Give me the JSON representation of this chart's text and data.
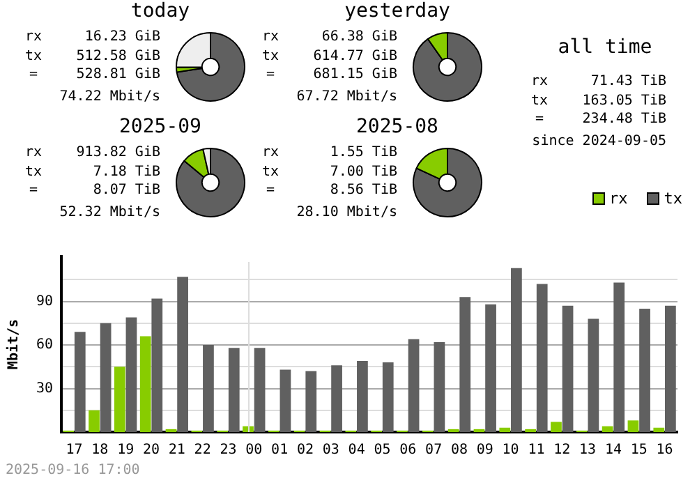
{
  "chart_data": [
    {
      "type": "donut",
      "title": "today",
      "categories": [
        null,
        null,
        null
      ],
      "values": [
        72.5,
        2.3,
        25.2
      ],
      "colors": [
        "#606060",
        "#88cc00",
        "#eeeeee"
      ],
      "annotations": [
        "rx",
        "16.23 GiB",
        "tx",
        "512.58 GiB",
        "=",
        "528.81 GiB",
        "74.22 Mbit/s"
      ]
    },
    {
      "type": "donut",
      "title": "yesterday",
      "categories": [
        null,
        null
      ],
      "values": [
        90.25,
        9.75
      ],
      "colors": [
        "#606060",
        "#88cc00"
      ],
      "annotations": [
        "rx",
        "66.38 GiB",
        "tx",
        "614.77 GiB",
        "=",
        "681.15 GiB",
        "67.72 Mbit/s"
      ]
    },
    {
      "type": "other",
      "title": "all time",
      "annotations": [
        "rx",
        "71.43 TiB",
        "tx",
        "163.05 TiB",
        "=",
        "234.48 TiB",
        "since 2024-09-05"
      ]
    },
    {
      "type": "donut",
      "title": "2025-09",
      "categories": [
        null,
        null,
        null
      ],
      "values": [
        86,
        10.5,
        3.5
      ],
      "colors": [
        "#606060",
        "#88cc00",
        "#eeeeee"
      ],
      "annotations": [
        "rx",
        "913.82 GiB",
        "tx",
        "7.18 TiB",
        "=",
        "8.07 TiB",
        "52.32 Mbit/s"
      ]
    },
    {
      "type": "donut",
      "title": "2025-08",
      "categories": [
        null,
        null
      ],
      "values": [
        81.9,
        18.1
      ],
      "colors": [
        "#606060",
        "#88cc00"
      ],
      "annotations": [
        "rx",
        "1.55 TiB",
        "tx",
        "7.00 TiB",
        "=",
        "8.56 TiB",
        "28.10 Mbit/s"
      ]
    },
    {
      "type": "bar",
      "ylabel": "Mbit/s",
      "legend": "top right",
      "grid": "y",
      "categories": [
        "17",
        "18",
        "19",
        "20",
        "21",
        "22",
        "23",
        "00",
        "01",
        "02",
        "03",
        "04",
        "05",
        "06",
        "07",
        "08",
        "09",
        "10",
        "11",
        "12",
        "13",
        "14",
        "15",
        "16"
      ],
      "series": [
        {
          "name": "rx",
          "color": "#88cc00",
          "values": [
            1,
            15,
            45,
            66,
            2,
            1,
            1,
            4,
            1,
            1,
            1,
            1,
            1,
            1,
            1,
            2,
            2,
            3,
            2,
            7,
            1,
            4,
            8,
            3
          ]
        },
        {
          "name": "tx",
          "color": "#606060",
          "values": [
            69,
            75,
            79,
            92,
            107,
            60,
            58,
            58,
            43,
            42,
            46,
            49,
            48,
            64,
            62,
            93,
            88,
            113,
            102,
            87,
            78,
            103,
            85,
            87
          ]
        }
      ],
      "ylim": [
        0,
        121
      ],
      "yticks": [
        {
          "value": 15,
          "label": null
        },
        30,
        {
          "value": 45,
          "label": null
        },
        60,
        {
          "value": 75,
          "label": null
        },
        90,
        {
          "value": 105,
          "label": null
        }
      ],
      "ref_lines": [
        {
          "axis": "x",
          "value": "00",
          "color": "#dddddd"
        }
      ],
      "annotations": [
        "2025-09-16 17:00"
      ]
    }
  ]
}
